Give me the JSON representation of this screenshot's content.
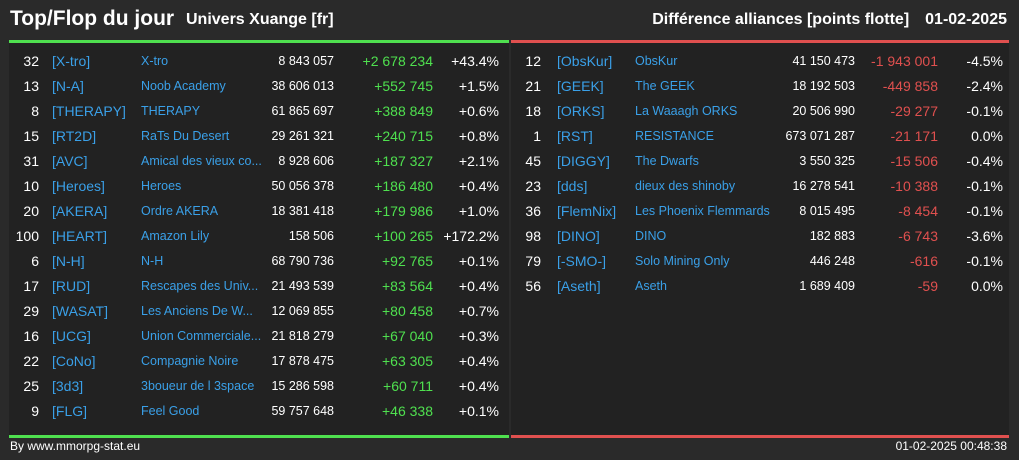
{
  "header": {
    "title": "Top/Flop du jour",
    "subtitle": "Univers Xuange [fr]",
    "caption": "Différence alliances [points flotte]",
    "date": "01-02-2025"
  },
  "colors": {
    "accent_top": "#4fe04f",
    "accent_flop": "#e0504f",
    "link": "#3aa0e8"
  },
  "top": [
    {
      "rank": "32",
      "tag": "[X-tro]",
      "name": "X-tro",
      "points": "8 843 057",
      "diff": "+2 678 234",
      "pct": "+43.4%"
    },
    {
      "rank": "13",
      "tag": "[N-A]",
      "name": "Noob Academy",
      "points": "38 606 013",
      "diff": "+552 745",
      "pct": "+1.5%"
    },
    {
      "rank": "8",
      "tag": "[THERAPY]",
      "name": "THERAPY",
      "points": "61 865 697",
      "diff": "+388 849",
      "pct": "+0.6%"
    },
    {
      "rank": "15",
      "tag": "[RT2D]",
      "name": "RaTs Du Desert",
      "points": "29 261 321",
      "diff": "+240 715",
      "pct": "+0.8%"
    },
    {
      "rank": "31",
      "tag": "[AVC]",
      "name": "Amical des vieux co...",
      "points": "8 928 606",
      "diff": "+187 327",
      "pct": "+2.1%"
    },
    {
      "rank": "10",
      "tag": "[Heroes]",
      "name": "Heroes",
      "points": "50 056 378",
      "diff": "+186 480",
      "pct": "+0.4%"
    },
    {
      "rank": "20",
      "tag": "[AKERA]",
      "name": "Ordre AKERA",
      "points": "18 381 418",
      "diff": "+179 986",
      "pct": "+1.0%"
    },
    {
      "rank": "100",
      "tag": "[HEART]",
      "name": "Amazon Lily",
      "points": "158 506",
      "diff": "+100 265",
      "pct": "+172.2%"
    },
    {
      "rank": "6",
      "tag": "[N-H]",
      "name": "N-H",
      "points": "68 790 736",
      "diff": "+92 765",
      "pct": "+0.1%"
    },
    {
      "rank": "17",
      "tag": "[RUD]",
      "name": "Rescapes des Univ...",
      "points": "21 493 539",
      "diff": "+83 564",
      "pct": "+0.4%"
    },
    {
      "rank": "29",
      "tag": "[WASAT]",
      "name": "Les Anciens De W...",
      "points": "12 069 855",
      "diff": "+80 458",
      "pct": "+0.7%"
    },
    {
      "rank": "16",
      "tag": "[UCG]",
      "name": "Union Commerciale...",
      "points": "21 818 279",
      "diff": "+67 040",
      "pct": "+0.3%"
    },
    {
      "rank": "22",
      "tag": "[CoNo]",
      "name": "Compagnie Noire",
      "points": "17 878 475",
      "diff": "+63 305",
      "pct": "+0.4%"
    },
    {
      "rank": "25",
      "tag": "[3d3]",
      "name": "3boueur de l 3space",
      "points": "15 286 598",
      "diff": "+60 711",
      "pct": "+0.4%"
    },
    {
      "rank": "9",
      "tag": "[FLG]",
      "name": "Feel Good",
      "points": "59 757 648",
      "diff": "+46 338",
      "pct": "+0.1%"
    }
  ],
  "flop": [
    {
      "rank": "12",
      "tag": "[ObsKur]",
      "name": "ObsKur",
      "points": "41 150 473",
      "diff": "-1 943 001",
      "pct": "-4.5%"
    },
    {
      "rank": "21",
      "tag": "[GEEK]",
      "name": "The GEEK",
      "points": "18 192 503",
      "diff": "-449 858",
      "pct": "-2.4%"
    },
    {
      "rank": "18",
      "tag": "[ORKS]",
      "name": "La Waaagh ORKS",
      "points": "20 506 990",
      "diff": "-29 277",
      "pct": "-0.1%"
    },
    {
      "rank": "1",
      "tag": "[RST]",
      "name": "RESISTANCE",
      "points": "673 071 287",
      "diff": "-21 171",
      "pct": "0.0%"
    },
    {
      "rank": "45",
      "tag": "[DIGGY]",
      "name": "The Dwarfs",
      "points": "3 550 325",
      "diff": "-15 506",
      "pct": "-0.4%"
    },
    {
      "rank": "23",
      "tag": "[dds]",
      "name": "dieux des shinoby",
      "points": "16 278 541",
      "diff": "-10 388",
      "pct": "-0.1%"
    },
    {
      "rank": "36",
      "tag": "[FlemNix]",
      "name": "Les Phoenix Flemmards",
      "points": "8 015 495",
      "diff": "-8 454",
      "pct": "-0.1%"
    },
    {
      "rank": "98",
      "tag": "[DINO]",
      "name": "DINO",
      "points": "182 883",
      "diff": "-6 743",
      "pct": "-3.6%"
    },
    {
      "rank": "79",
      "tag": "[-SMO-]",
      "name": "Solo Mining Only",
      "points": "446 248",
      "diff": "-616",
      "pct": "-0.1%"
    },
    {
      "rank": "56",
      "tag": "[Aseth]",
      "name": "Aseth",
      "points": "1 689 409",
      "diff": "-59",
      "pct": "0.0%"
    }
  ],
  "footer": {
    "credit": "By www.mmorpg-stat.eu",
    "timestamp": "01-02-2025 00:48:38"
  }
}
